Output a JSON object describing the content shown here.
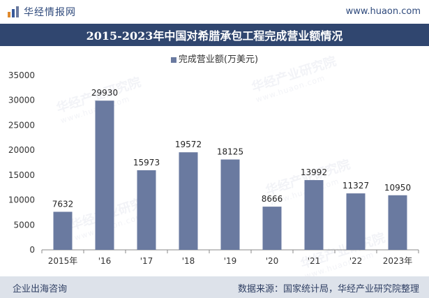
{
  "header": {
    "brand_name": "华经情报网",
    "site_url": "www.huaon.com"
  },
  "legend_label": "完成营业额(万美元)",
  "watermark": {
    "text": "华经产业研究院",
    "url": "www.huaon.com"
  },
  "footer": {
    "left_text": "企业出海咨询",
    "right_text": "数据来源：国家统计局，华经产业研究院整理"
  },
  "colors": {
    "bar": "#6a7aa0",
    "title_bg": "#30466f",
    "footer_bg": "#dde2ea"
  },
  "chart_data": {
    "type": "bar",
    "title": "2015-2023年中国对希腊承包工程完成营业额情况",
    "categories": [
      "2015年",
      "'16",
      "'17",
      "'18",
      "'19",
      "'20",
      "'21",
      "'22",
      "2023年"
    ],
    "series": [
      {
        "name": "完成营业额(万美元)",
        "values": [
          7632,
          29930,
          15973,
          19572,
          18125,
          8666,
          13992,
          11327,
          10950
        ]
      }
    ],
    "data_labels": [
      "7632",
      "29930",
      "15973",
      "19572",
      "18125",
      "8666",
      "13992",
      "11327",
      "10950"
    ],
    "ylim": [
      0,
      35000
    ],
    "yticks": [
      0,
      5000,
      10000,
      15000,
      20000,
      25000,
      30000,
      35000
    ],
    "ytick_labels": [
      "0",
      "5000",
      "10000",
      "15000",
      "20000",
      "25000",
      "30000",
      "35000"
    ],
    "xlabel": "",
    "ylabel": "",
    "grid": false,
    "legend_position": "top-center"
  }
}
